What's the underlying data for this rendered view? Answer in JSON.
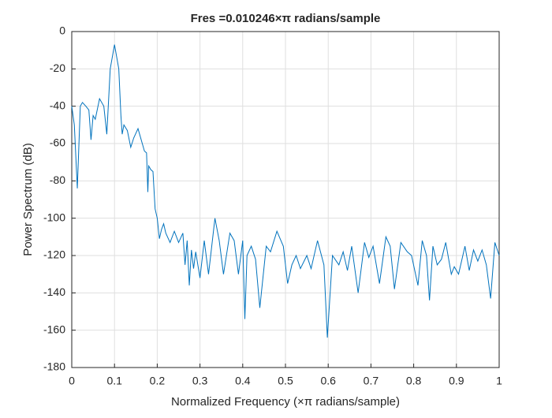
{
  "chart_data": {
    "type": "line",
    "title": "Fres =0.010246×π radians/sample",
    "x_label": "Normalized Frequency (×π radians/sample)",
    "y_label": "Power Spectrum (dB)",
    "xlim": [
      0,
      1
    ],
    "ylim": [
      -180,
      0
    ],
    "xticks": [
      0,
      0.1,
      0.2,
      0.3,
      0.4,
      0.5,
      0.6,
      0.7,
      0.8,
      0.9,
      1
    ],
    "yticks": [
      0,
      -20,
      -40,
      -60,
      -80,
      -100,
      -120,
      -140,
      -160,
      -180
    ],
    "grid": true,
    "series": [
      {
        "color": "#0072bd",
        "x": [
          0,
          0.006,
          0.013,
          0.02,
          0.025,
          0.033,
          0.04,
          0.045,
          0.05,
          0.055,
          0.065,
          0.075,
          0.082,
          0.09,
          0.1,
          0.11,
          0.115,
          0.118,
          0.122,
          0.13,
          0.138,
          0.145,
          0.155,
          0.165,
          0.17,
          0.175,
          0.178,
          0.18,
          0.185,
          0.19,
          0.195,
          0.2,
          0.205,
          0.21,
          0.215,
          0.22,
          0.23,
          0.24,
          0.25,
          0.26,
          0.265,
          0.27,
          0.275,
          0.28,
          0.285,
          0.29,
          0.3,
          0.31,
          0.32,
          0.335,
          0.345,
          0.355,
          0.37,
          0.38,
          0.39,
          0.4,
          0.405,
          0.41,
          0.42,
          0.43,
          0.44,
          0.455,
          0.465,
          0.48,
          0.495,
          0.505,
          0.515,
          0.525,
          0.535,
          0.55,
          0.56,
          0.575,
          0.59,
          0.598,
          0.61,
          0.625,
          0.635,
          0.645,
          0.655,
          0.67,
          0.685,
          0.695,
          0.705,
          0.72,
          0.735,
          0.745,
          0.755,
          0.77,
          0.785,
          0.795,
          0.81,
          0.82,
          0.83,
          0.837,
          0.845,
          0.855,
          0.865,
          0.875,
          0.888,
          0.895,
          0.905,
          0.92,
          0.93,
          0.94,
          0.95,
          0.96,
          0.97,
          0.98,
          0.99,
          1
        ],
        "values": [
          -40,
          -50,
          -84,
          -40,
          -38,
          -40,
          -42,
          -58,
          -45,
          -47,
          -36,
          -40,
          -55,
          -20,
          -7,
          -20,
          -45,
          -55,
          -50,
          -53,
          -62,
          -57,
          -52,
          -60,
          -64,
          -65,
          -86,
          -72,
          -74,
          -75,
          -95,
          -100,
          -111,
          -106,
          -103,
          -108,
          -113,
          -107,
          -113,
          -108,
          -125,
          -112,
          -136,
          -117,
          -127,
          -118,
          -132,
          -112,
          -130,
          -100,
          -112,
          -130,
          -108,
          -112,
          -130,
          -112,
          -154,
          -120,
          -115,
          -122,
          -148,
          -115,
          -118,
          -107,
          -115,
          -135,
          -125,
          -120,
          -127,
          -120,
          -127,
          -112,
          -125,
          -164,
          -120,
          -125,
          -118,
          -128,
          -115,
          -140,
          -113,
          -121,
          -115,
          -135,
          -110,
          -115,
          -138,
          -113,
          -118,
          -120,
          -136,
          -112,
          -120,
          -144,
          -115,
          -125,
          -122,
          -113,
          -130,
          -126,
          -130,
          -115,
          -128,
          -117,
          -123,
          -117,
          -125,
          -143,
          -113,
          -120
        ]
      }
    ]
  }
}
